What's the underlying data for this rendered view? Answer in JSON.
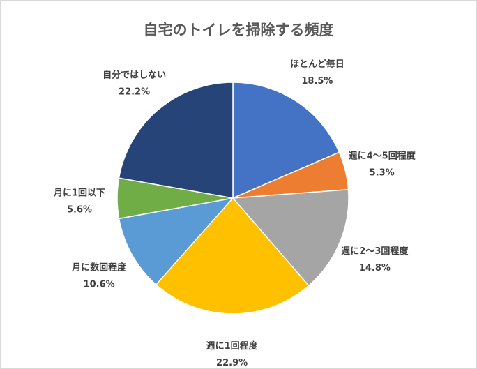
{
  "chart_data": {
    "type": "pie",
    "title": "自宅のトイレを掃除する頻度",
    "slices": [
      {
        "label": "ほとんど毎日",
        "value": 18.5,
        "value_label": "18.5%",
        "color": "#4472C4"
      },
      {
        "label": "週に4～5回程度",
        "value": 5.3,
        "value_label": "5.3%",
        "color": "#ED7D31"
      },
      {
        "label": "週に2～3回程度",
        "value": 14.8,
        "value_label": "14.8%",
        "color": "#A5A5A5"
      },
      {
        "label": "週に1回程度",
        "value": 22.9,
        "value_label": "22.9%",
        "color": "#FFC000"
      },
      {
        "label": "月に数回程度",
        "value": 10.6,
        "value_label": "10.6%",
        "color": "#5B9BD5"
      },
      {
        "label": "月に1回以下",
        "value": 5.6,
        "value_label": "5.6%",
        "color": "#70AD47"
      },
      {
        "label": "自分ではしない",
        "value": 22.2,
        "value_label": "22.2%",
        "color": "#264478"
      }
    ],
    "legend": "none",
    "label_position": "outside"
  }
}
